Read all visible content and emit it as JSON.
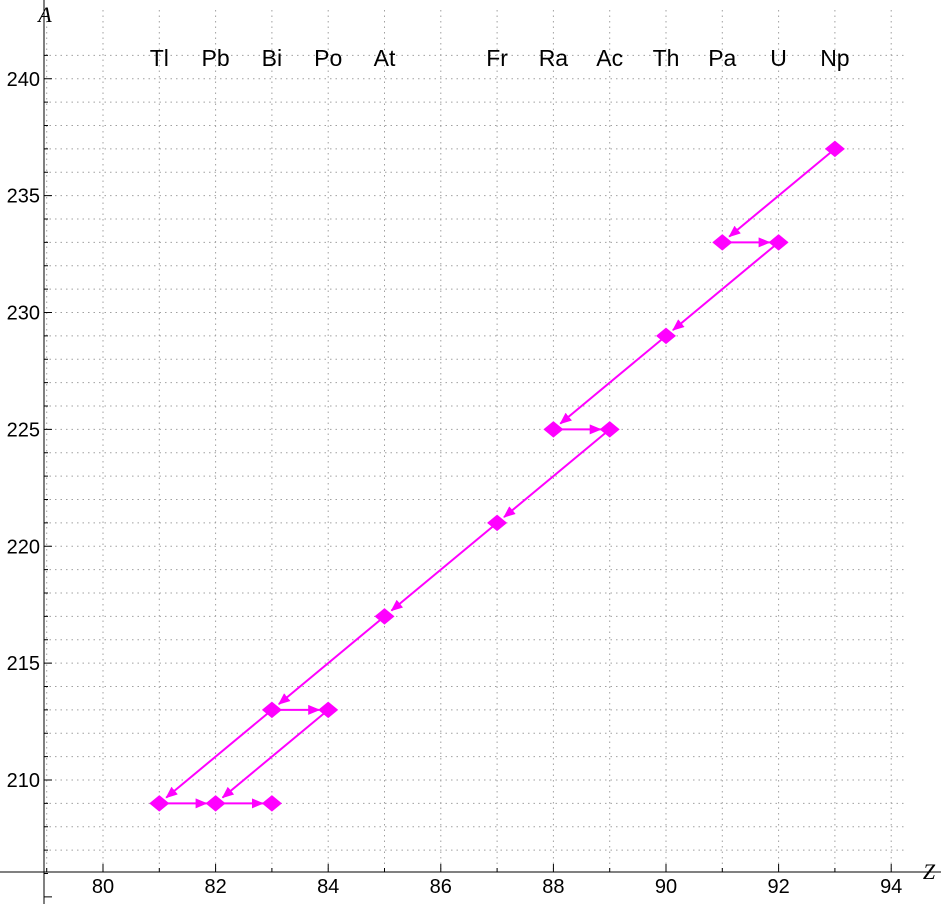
{
  "chart_data": {
    "type": "scatter",
    "title": "",
    "xlabel": "Z",
    "ylabel": "A",
    "xlim": [
      79,
      95
    ],
    "ylim": [
      205,
      241.5
    ],
    "x_ticks": [
      "80",
      "82",
      "84",
      "86",
      "88",
      "90",
      "92",
      "94"
    ],
    "y_ticks": [
      "210",
      "215",
      "220",
      "225",
      "230",
      "235",
      "240"
    ],
    "grid": true,
    "element_labels": [
      {
        "z": 81,
        "symbol": "Tl"
      },
      {
        "z": 82,
        "symbol": "Pb"
      },
      {
        "z": 83,
        "symbol": "Bi"
      },
      {
        "z": 84,
        "symbol": "Po"
      },
      {
        "z": 85,
        "symbol": "At"
      },
      {
        "z": 87,
        "symbol": "Fr"
      },
      {
        "z": 88,
        "symbol": "Ra"
      },
      {
        "z": 89,
        "symbol": "Ac"
      },
      {
        "z": 90,
        "symbol": "Th"
      },
      {
        "z": 91,
        "symbol": "Pa"
      },
      {
        "z": 92,
        "symbol": "U"
      },
      {
        "z": 93,
        "symbol": "Np"
      }
    ],
    "points": [
      {
        "x": 93,
        "y": 237
      },
      {
        "x": 91,
        "y": 233
      },
      {
        "x": 92,
        "y": 233
      },
      {
        "x": 90,
        "y": 229
      },
      {
        "x": 88,
        "y": 225
      },
      {
        "x": 89,
        "y": 225
      },
      {
        "x": 87,
        "y": 221
      },
      {
        "x": 85,
        "y": 217
      },
      {
        "x": 83,
        "y": 213
      },
      {
        "x": 84,
        "y": 213
      },
      {
        "x": 81,
        "y": 209
      },
      {
        "x": 82,
        "y": 209
      },
      {
        "x": 83,
        "y": 209
      }
    ],
    "arrows": [
      {
        "from": [
          93,
          237
        ],
        "to": [
          91,
          233
        ]
      },
      {
        "from": [
          91,
          233
        ],
        "to": [
          92,
          233
        ]
      },
      {
        "from": [
          92,
          233
        ],
        "to": [
          90,
          229
        ]
      },
      {
        "from": [
          90,
          229
        ],
        "to": [
          88,
          225
        ]
      },
      {
        "from": [
          88,
          225
        ],
        "to": [
          89,
          225
        ]
      },
      {
        "from": [
          89,
          225
        ],
        "to": [
          87,
          221
        ]
      },
      {
        "from": [
          87,
          221
        ],
        "to": [
          85,
          217
        ]
      },
      {
        "from": [
          85,
          217
        ],
        "to": [
          83,
          213
        ]
      },
      {
        "from": [
          83,
          213
        ],
        "to": [
          84,
          213
        ]
      },
      {
        "from": [
          83,
          213
        ],
        "to": [
          81,
          209
        ]
      },
      {
        "from": [
          81,
          209
        ],
        "to": [
          82,
          209
        ]
      },
      {
        "from": [
          84,
          213
        ],
        "to": [
          82,
          209
        ]
      },
      {
        "from": [
          82,
          209
        ],
        "to": [
          83,
          209
        ]
      }
    ],
    "colors": {
      "series": "#FF00FF",
      "grid": "#A0A0A0",
      "axis": "#000000"
    }
  }
}
